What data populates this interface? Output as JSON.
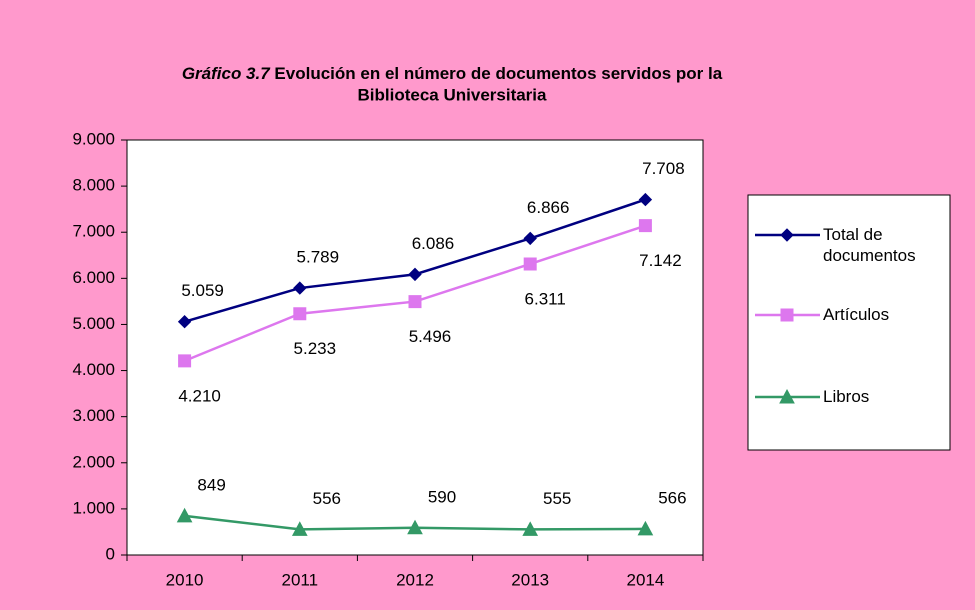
{
  "chart_data": {
    "type": "line",
    "title_number": "Gráfico 3.7",
    "title": [
      "Evolución en el número de documentos servidos por la",
      "Biblioteca Universitaria"
    ],
    "categories": [
      "2010",
      "2011",
      "2012",
      "2013",
      "2014"
    ],
    "series": [
      {
        "name": "Total de documentos",
        "color": "#000080",
        "marker": "diamond",
        "values": [
          5059,
          5789,
          6086,
          6866,
          7708
        ],
        "value_labels": [
          "5.059",
          "5.789",
          "6.086",
          "6.866",
          "7.708"
        ]
      },
      {
        "name": "Artículos",
        "color": "#dd77ee",
        "marker": "square",
        "values": [
          4210,
          5233,
          5496,
          6311,
          7142
        ],
        "value_labels": [
          "4.210",
          "5.233",
          "5.496",
          "6.311",
          "7.142"
        ]
      },
      {
        "name": "Libros",
        "color": "#339966",
        "marker": "triangle",
        "values": [
          849,
          556,
          590,
          555,
          566
        ],
        "value_labels": [
          "849",
          "556",
          "590",
          "555",
          "566"
        ]
      }
    ],
    "ylim": [
      0,
      9000
    ],
    "yticks": [
      0,
      {
        "value": 1000,
        "label": "1.000"
      },
      {
        "value": 2000,
        "label": "2.000"
      },
      {
        "value": 3000,
        "label": "3.000"
      },
      {
        "value": 4000,
        "label": "4.000"
      },
      {
        "value": 5000,
        "label": "5.000"
      },
      {
        "value": 6000,
        "label": "6.000"
      },
      {
        "value": 7000,
        "label": "7.000"
      },
      {
        "value": 8000,
        "label": "8.000"
      },
      {
        "value": 9000,
        "label": "9.000"
      }
    ],
    "grid": false,
    "legend": "right"
  }
}
